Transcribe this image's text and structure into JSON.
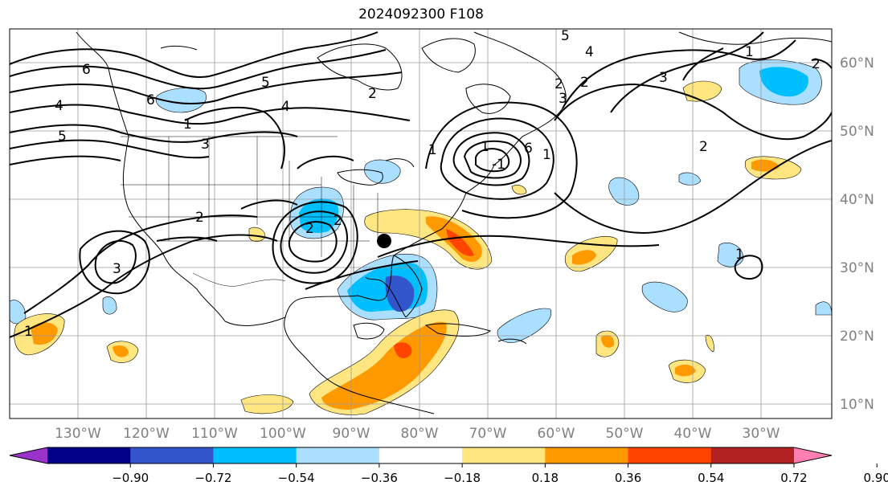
{
  "title": "2024092300 F108",
  "colors": {
    "purple": "#9933cc",
    "navy": "#000088",
    "royal": "#3355cc",
    "deepsky": "#00bfff",
    "lightblue": "#aadfff",
    "yellow": "#ffe680",
    "orange": "#ff9900",
    "redorange": "#ff4400",
    "darkred": "#b22222",
    "pink": "#ff80b0"
  },
  "longitude_labels": [
    "130°W",
    "120°W",
    "110°W",
    "100°W",
    "90°W",
    "80°W",
    "70°W",
    "60°W",
    "50°W",
    "40°W",
    "30°W"
  ],
  "latitude_labels": [
    "60°N",
    "50°N",
    "40°N",
    "30°N",
    "20°N",
    "10°N"
  ],
  "colorbar": {
    "ticks": [
      "−0.90",
      "−0.72",
      "−0.54",
      "−0.36",
      "−0.18",
      "0.18",
      "0.36",
      "0.54",
      "0.72",
      "0.90"
    ],
    "segment_colors": [
      "#9933cc",
      "#000088",
      "#3355cc",
      "#00bfff",
      "#aadfff",
      "#ffffff",
      "#ffe680",
      "#ff9900",
      "#ff4400",
      "#b22222",
      "#ff80b0"
    ]
  },
  "contour_labels": [
    "6",
    "6",
    "5",
    "4",
    "1",
    "2",
    "3",
    "2",
    "1",
    "5",
    "4",
    "3",
    "2",
    "1",
    "6",
    "2",
    "3",
    "2",
    "1",
    "1",
    "-1",
    "1",
    "2",
    "3",
    "5",
    "4",
    "2",
    "1",
    "2"
  ]
}
